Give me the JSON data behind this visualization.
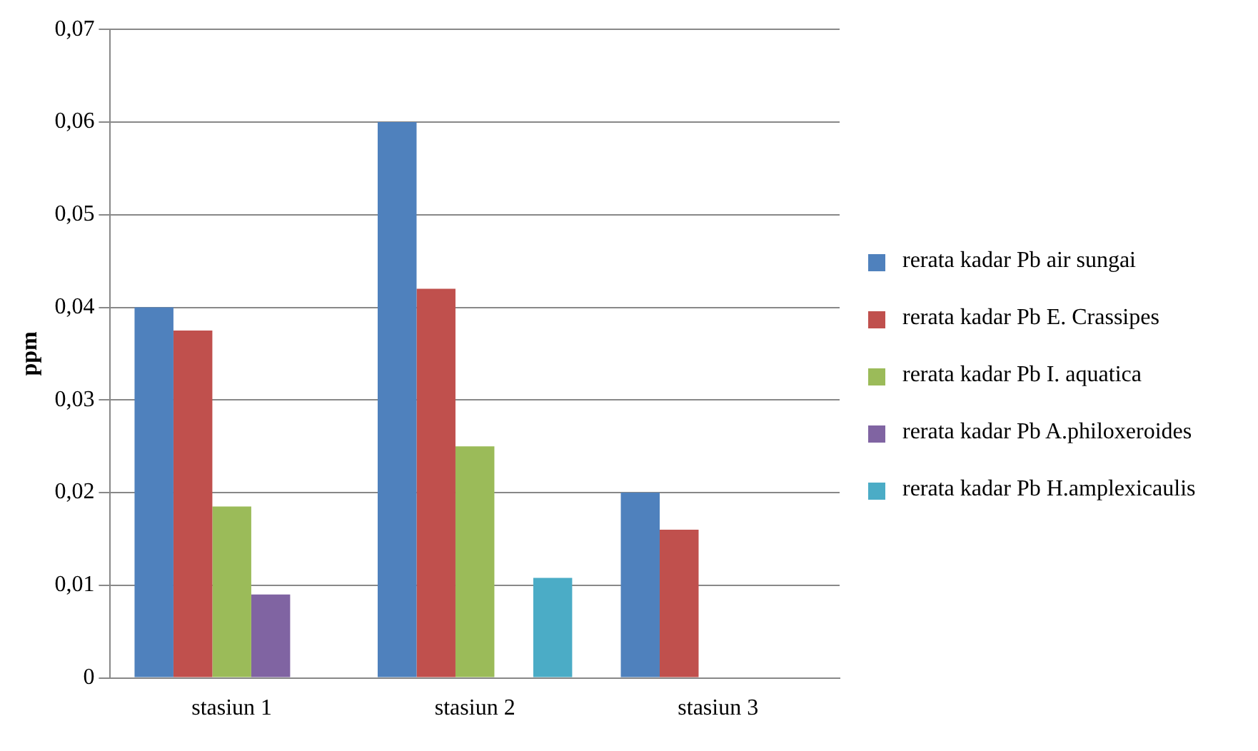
{
  "chart_data": {
    "type": "bar",
    "ylabel": "ppm",
    "categories": [
      "stasiun 1",
      "stasiun 2",
      "stasiun 3"
    ],
    "series": [
      {
        "name": "rerata kadar Pb air sungai",
        "color": "#4f81bd",
        "values": [
          0.04,
          0.06,
          0.02
        ]
      },
      {
        "name": "rerata kadar Pb E. Crassipes",
        "color": "#c0504d",
        "values": [
          0.0375,
          0.042,
          0.016
        ]
      },
      {
        "name": "rerata kadar Pb I. aquatica",
        "color": "#9bbb59",
        "values": [
          0.0185,
          0.025,
          null
        ]
      },
      {
        "name": "rerata kadar Pb A.philoxeroides",
        "color": "#8064a2",
        "values": [
          0.009,
          null,
          null
        ]
      },
      {
        "name": "rerata kadar Pb H.amplexicaulis",
        "color": "#4bacc6",
        "values": [
          null,
          0.0108,
          null
        ]
      }
    ],
    "ylim": [
      0,
      0.07
    ],
    "yticks": [
      0,
      {
        "value": 0.01,
        "label": "0,01"
      },
      {
        "value": 0.02,
        "label": "0,02"
      },
      {
        "value": 0.03,
        "label": "0,03"
      },
      {
        "value": 0.04,
        "label": "0,04"
      },
      {
        "value": 0.05,
        "label": "0,05"
      },
      {
        "value": 0.06,
        "label": "0,06"
      },
      {
        "value": 0.07,
        "label": "0,07"
      }
    ],
    "grid": "y",
    "legend": "right"
  }
}
